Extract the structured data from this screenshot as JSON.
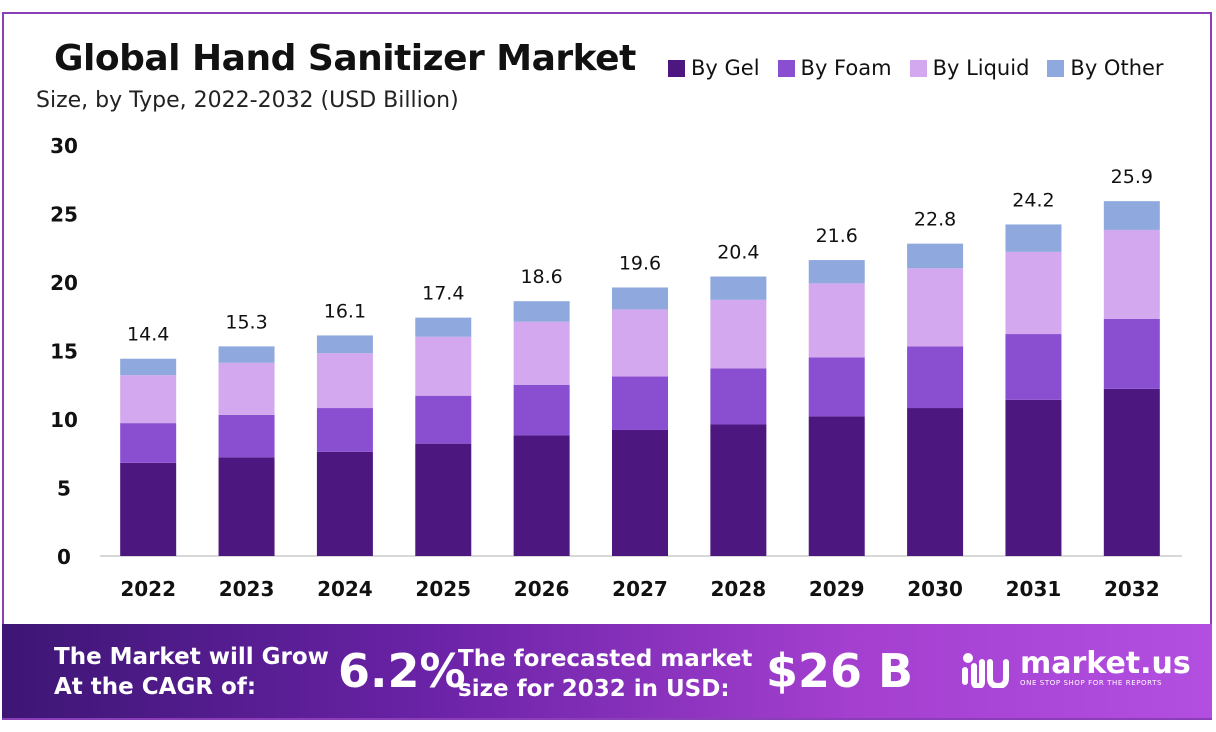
{
  "header": {
    "title": "Global Hand Sanitizer Market",
    "subtitle": "Size, by Type, 2022-2032 (USD Billion)"
  },
  "legend": [
    {
      "label": "By Gel",
      "color": "#4d1780"
    },
    {
      "label": "By Foam",
      "color": "#8a4fd0"
    },
    {
      "label": "By Liquid",
      "color": "#d3a8ee"
    },
    {
      "label": "By Other",
      "color": "#8fa8dd"
    }
  ],
  "chart_data": {
    "type": "bar",
    "stacked": true,
    "title": "Global Hand Sanitizer Market",
    "subtitle": "Size, by Type, 2022-2032 (USD Billion)",
    "categories": [
      "2022",
      "2023",
      "2024",
      "2025",
      "2026",
      "2027",
      "2028",
      "2029",
      "2030",
      "2031",
      "2032"
    ],
    "series": [
      {
        "name": "By Gel",
        "color": "#4d1780",
        "values": [
          6.8,
          7.2,
          7.6,
          8.2,
          8.8,
          9.2,
          9.6,
          10.2,
          10.8,
          11.4,
          12.2
        ]
      },
      {
        "name": "By Foam",
        "color": "#8a4fd0",
        "values": [
          2.9,
          3.1,
          3.2,
          3.5,
          3.7,
          3.9,
          4.1,
          4.3,
          4.5,
          4.8,
          5.1
        ]
      },
      {
        "name": "By Liquid",
        "color": "#d3a8ee",
        "values": [
          3.5,
          3.8,
          4.0,
          4.3,
          4.6,
          4.9,
          5.0,
          5.4,
          5.7,
          6.0,
          6.5
        ]
      },
      {
        "name": "By Other",
        "color": "#8fa8dd",
        "values": [
          1.2,
          1.2,
          1.3,
          1.4,
          1.5,
          1.6,
          1.7,
          1.7,
          1.8,
          2.0,
          2.1
        ]
      }
    ],
    "totals": [
      14.4,
      15.3,
      16.1,
      17.4,
      18.6,
      19.6,
      20.4,
      21.6,
      22.8,
      24.2,
      25.9
    ],
    "total_labels": [
      "14.4",
      "15.3",
      "16.1",
      "17.4",
      "18.6",
      "19.6",
      "20.4",
      "21.6",
      "22.8",
      "24.2",
      "25.9"
    ],
    "yticks": [
      0,
      5,
      10,
      15,
      20,
      25,
      30
    ],
    "ylim": [
      0,
      30
    ],
    "grid": false,
    "legend_position": "top-right"
  },
  "banner": {
    "cagr_line1": "The Market will Grow",
    "cagr_line2": "At the CAGR of:",
    "cagr_value": "6.2%",
    "forecast_line1": "The forecasted market",
    "forecast_line2": "size for 2032 in USD:",
    "forecast_value": "$26 B",
    "logo_name": "market.us",
    "logo_tagline": "ONE STOP SHOP FOR THE REPORTS"
  }
}
